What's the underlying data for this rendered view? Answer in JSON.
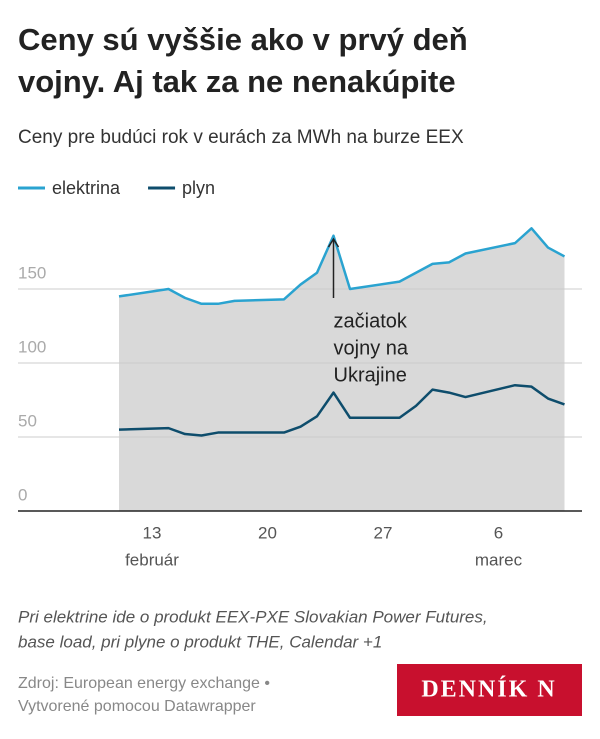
{
  "chart_data": {
    "type": "area-line",
    "title": [
      "Ceny sú vyššie ako v prvý deň",
      "vojny. Aj tak za ne nenakúpite"
    ],
    "subtitle": "Ceny pre budúci rok v eurách za MWh na burze EEX",
    "x": [
      "02-11",
      "02-14",
      "02-15",
      "02-16",
      "02-17",
      "02-18",
      "02-21",
      "02-22",
      "02-23",
      "02-24",
      "02-25",
      "02-28",
      "03-01",
      "03-02",
      "03-03",
      "03-04",
      "03-07",
      "03-08",
      "03-09",
      "03-10"
    ],
    "series": [
      {
        "name": "elektrina",
        "color": "#2aa3d0",
        "area_color": "#d9d9d9",
        "values": [
          145,
          150,
          144,
          140,
          140,
          142,
          143,
          153,
          161,
          186,
          150,
          155,
          161,
          167,
          168,
          174,
          181,
          191,
          178,
          172
        ]
      },
      {
        "name": "plyn",
        "color": "#0e4d6c",
        "values": [
          55,
          56,
          52,
          51,
          53,
          53,
          53,
          57,
          64,
          80,
          63,
          63,
          71,
          82,
          80,
          77,
          85,
          84,
          76,
          72
        ]
      }
    ],
    "ylim": [
      0,
      200
    ],
    "yticks": [
      0,
      50,
      100,
      150
    ],
    "xticks": [
      {
        "value": "02-13",
        "label": "13"
      },
      {
        "value": "02-20",
        "label": "20"
      },
      {
        "value": "02-27",
        "label": "27"
      },
      {
        "value": "03-06",
        "label": "6"
      }
    ],
    "xtick_months": [
      {
        "value": "02-13",
        "label": "február"
      },
      {
        "value": "03-06",
        "label": "marec"
      }
    ],
    "grid": true,
    "annotation": {
      "x": "02-24",
      "text": [
        "začiatok",
        "vojny na",
        "Ukrajine"
      ]
    },
    "note": [
      "Pri elektrine ide o produkt EEX-PXE Slovakian Power Futures,",
      "base load, pri plyne o produkt THE, Calendar +1"
    ],
    "source": [
      "Zdroj: European energy exchange •",
      "Vytvorené pomocou Datawrapper"
    ],
    "logo": "DENNÍK N"
  }
}
